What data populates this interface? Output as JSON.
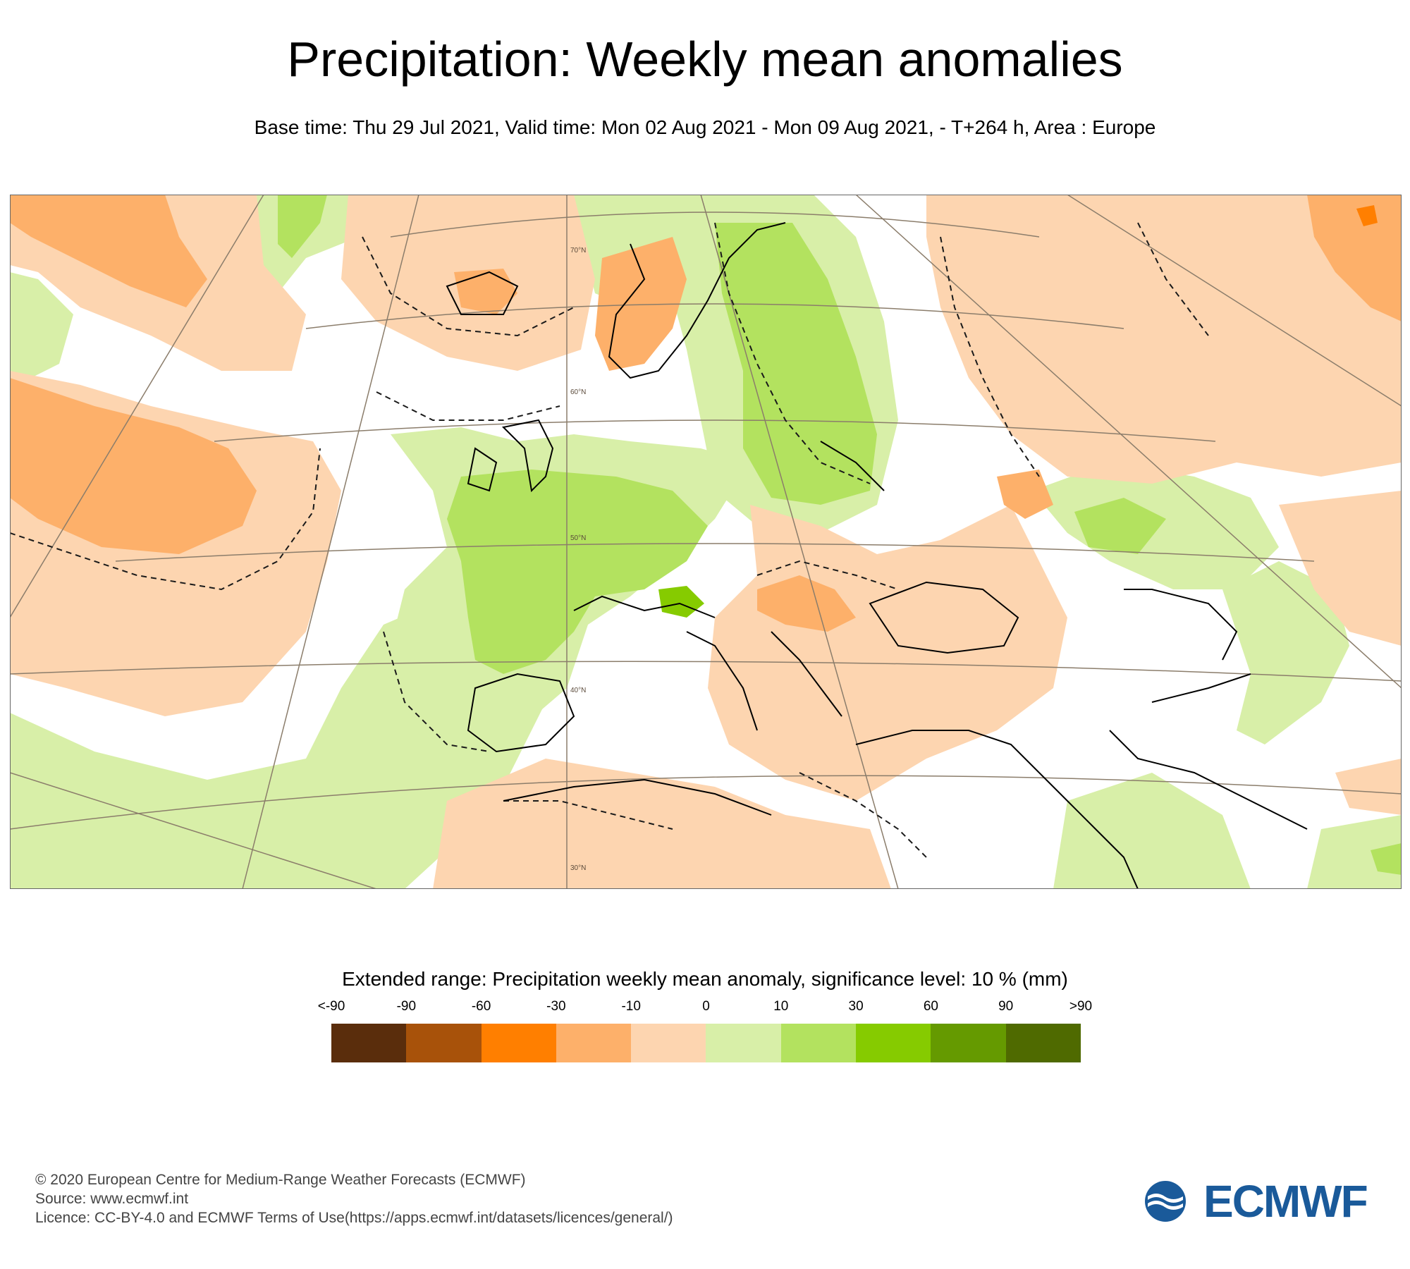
{
  "title": "Precipitation: Weekly mean anomalies",
  "subtitle": "Base time: Thu 29 Jul 2021, Valid time: Mon 02 Aug 2021 - Mon 09 Aug 2021, - T+264 h, Area : Europe",
  "map": {
    "latitude_labels": [
      "70°N",
      "60°N",
      "50°N",
      "40°N",
      "30°N"
    ]
  },
  "legend": {
    "title": "Extended range: Precipitation weekly mean anomaly, significance level: 10 % (mm)",
    "ticks": [
      "<-90",
      "-90",
      "-60",
      "-30",
      "-10",
      "0",
      "10",
      "30",
      "60",
      "90",
      ">90"
    ],
    "colors": [
      "#5a2d0c",
      "#a8520a",
      "#ff7f00",
      "#fdb06a",
      "#fdd5b0",
      "#d8efa8",
      "#b3e25f",
      "#86cb00",
      "#659a00",
      "#4f6a00"
    ]
  },
  "footer": {
    "line1": "© 2020 European Centre for Medium-Range Weather Forecasts (ECMWF)",
    "line2": "Source: www.ecmwf.int",
    "line3": "Licence: CC-BY-4.0 and ECMWF Terms of Use(https://apps.ecmwf.int/datasets/licences/general/)"
  },
  "logo": {
    "text": "ECMWF",
    "color": "#1a5a9a"
  }
}
